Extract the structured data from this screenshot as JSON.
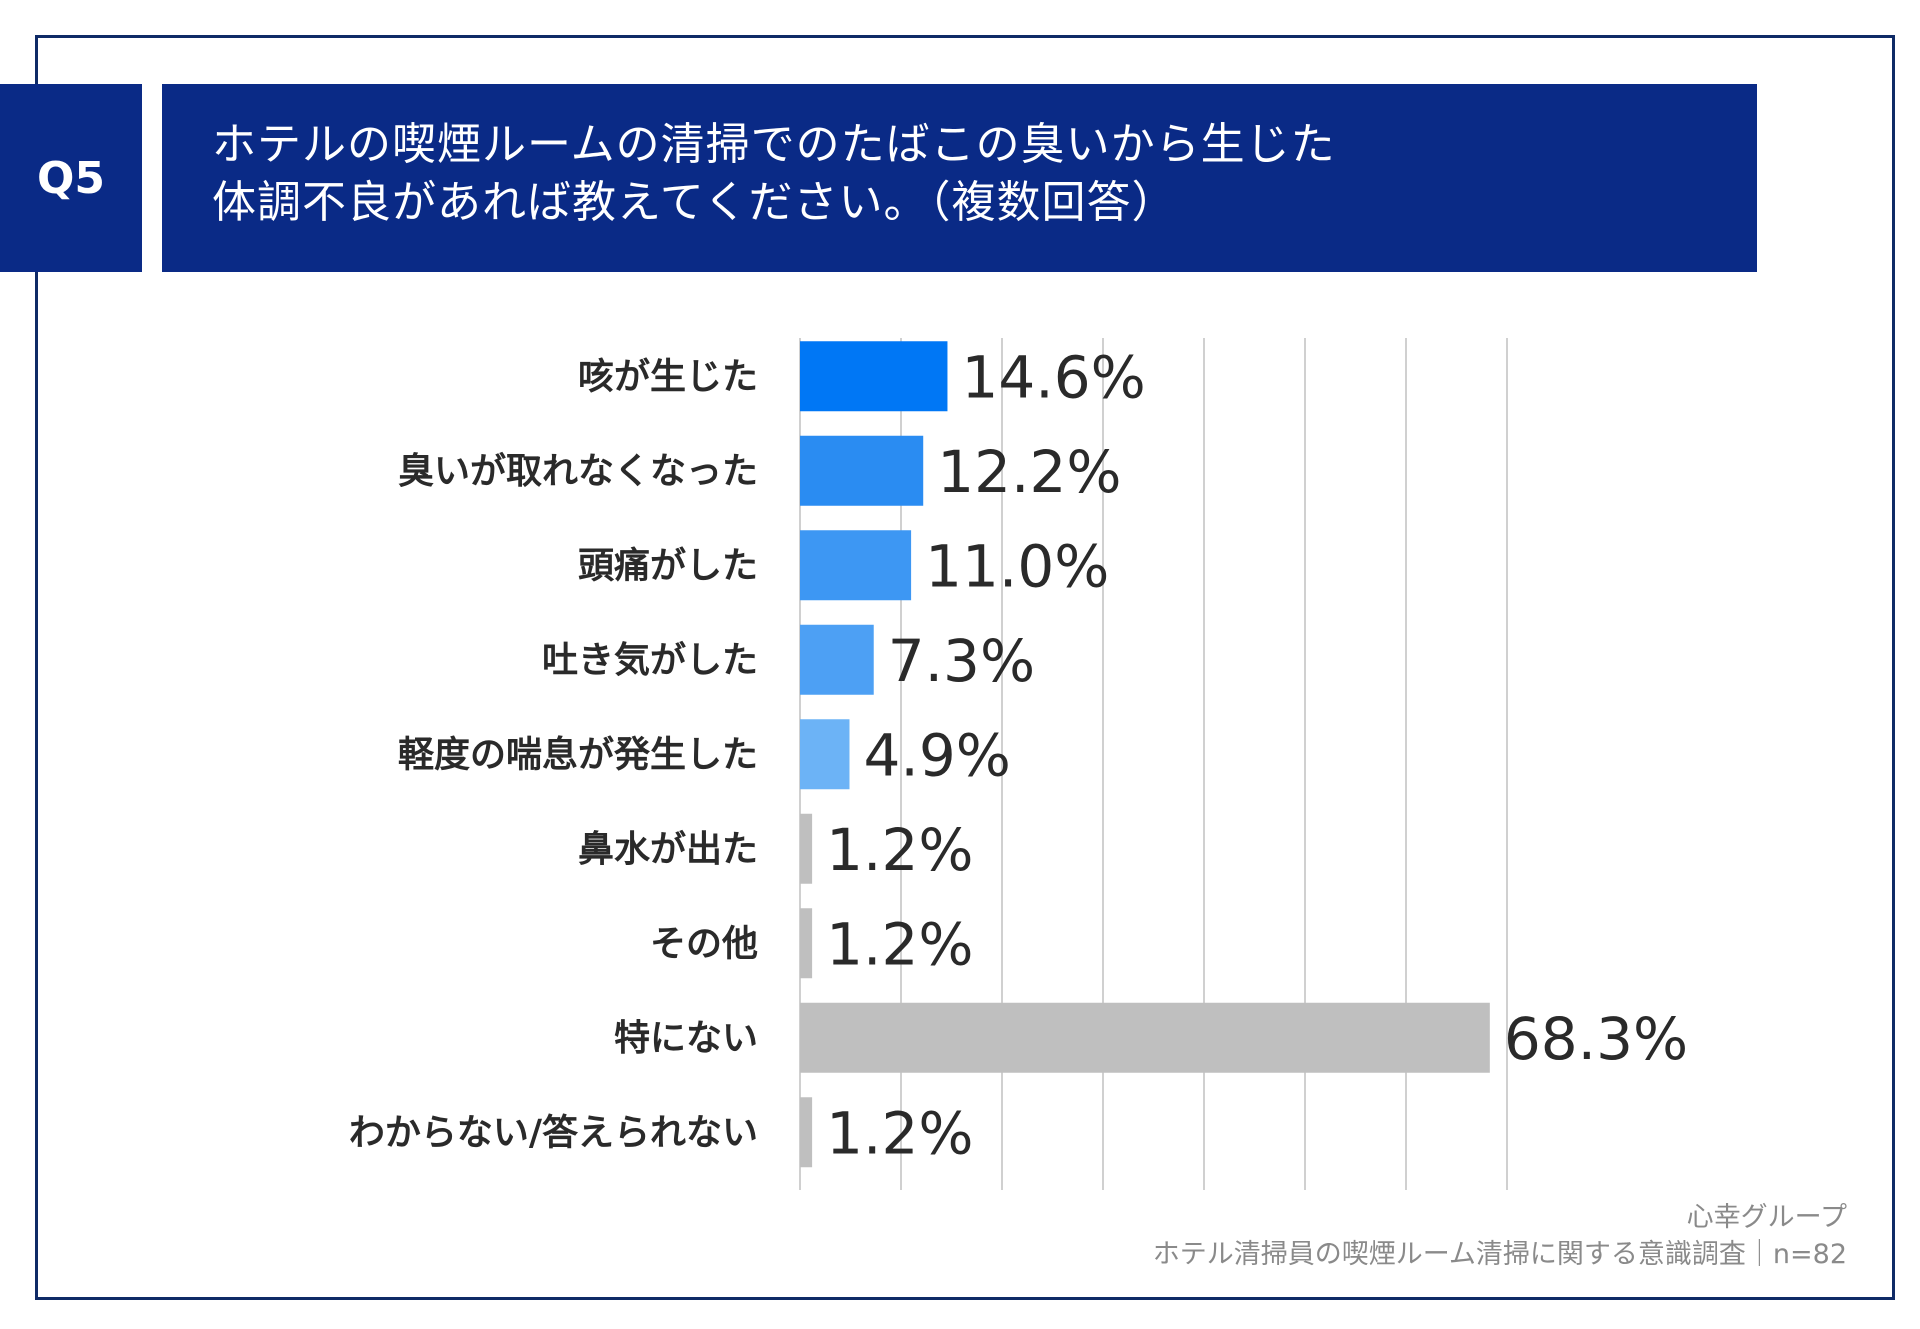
{
  "question": {
    "badge": "Q5",
    "title_line1": "ホテルの喫煙ルームの清掃でのたばこの臭いから生じた",
    "title_line2": "体調不良があれば教えてください。（複数回答）"
  },
  "source": {
    "line1": "心幸グループ",
    "line2": "ホテル清掃員の喫煙ルーム清掃に関する意識調査｜n=82"
  },
  "colors": {
    "header_bg": "#0a2a86",
    "frame": "#0f2a66",
    "grid": "#d0d0d0",
    "gray_bar": "#bfbfbf"
  },
  "chart_data": {
    "type": "bar",
    "orientation": "horizontal",
    "categories": [
      "咳が生じた",
      "臭いが取れなくなった",
      "頭痛がした",
      "吐き気がした",
      "軽度の喘息が発生した",
      "鼻水が出た",
      "その他",
      "特にない",
      "わからない/答えられない"
    ],
    "values": [
      14.6,
      12.2,
      11.0,
      7.3,
      4.9,
      1.2,
      1.2,
      68.3,
      1.2
    ],
    "value_labels": [
      "14.6%",
      "12.2%",
      "11.0%",
      "7.3%",
      "4.9%",
      "1.2%",
      "1.2%",
      "68.3%",
      "1.2%"
    ],
    "bar_colors": [
      "#0077f5",
      "#2a8cf2",
      "#3d97f3",
      "#4da0f4",
      "#6cb3f6",
      "#bfbfbf",
      "#bfbfbf",
      "#bfbfbf",
      "#bfbfbf"
    ],
    "xlim": [
      0,
      70
    ],
    "grid_step": 10,
    "grid": true
  }
}
